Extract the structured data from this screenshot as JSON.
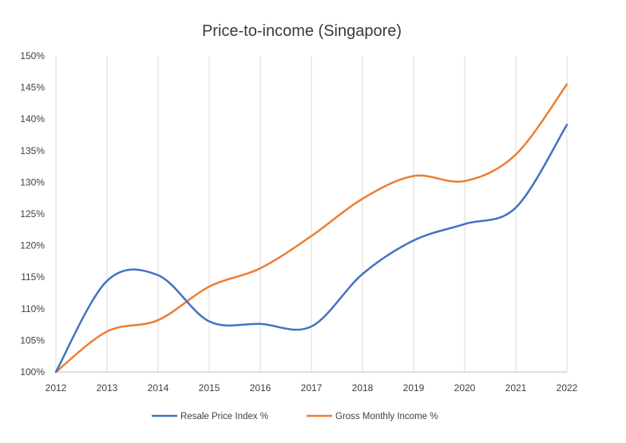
{
  "chart_data": {
    "type": "line",
    "title": "Price-to-income (Singapore)",
    "xlabel": "",
    "ylabel": "",
    "categories": [
      "2012",
      "2013",
      "2014",
      "2015",
      "2016",
      "2017",
      "2018",
      "2019",
      "2020",
      "2021",
      "2022"
    ],
    "ylim": [
      100,
      150
    ],
    "yticks": [
      "100%",
      "105%",
      "110%",
      "115%",
      "120%",
      "125%",
      "130%",
      "135%",
      "140%",
      "145%",
      "150%"
    ],
    "grid": "vertical",
    "legend_position": "bottom",
    "series": [
      {
        "name": "Resale Price Index %",
        "color": "#4472C4",
        "values": [
          100,
          114.4,
          115.3,
          108,
          107.6,
          107.2,
          115.5,
          120.8,
          123.4,
          126,
          139.1
        ]
      },
      {
        "name": "Gross Monthly Income %",
        "color": "#ED7D31",
        "values": [
          100,
          106.4,
          108.2,
          113.5,
          116.4,
          121.5,
          127.4,
          131,
          130.2,
          134.4,
          145.5
        ]
      }
    ]
  }
}
